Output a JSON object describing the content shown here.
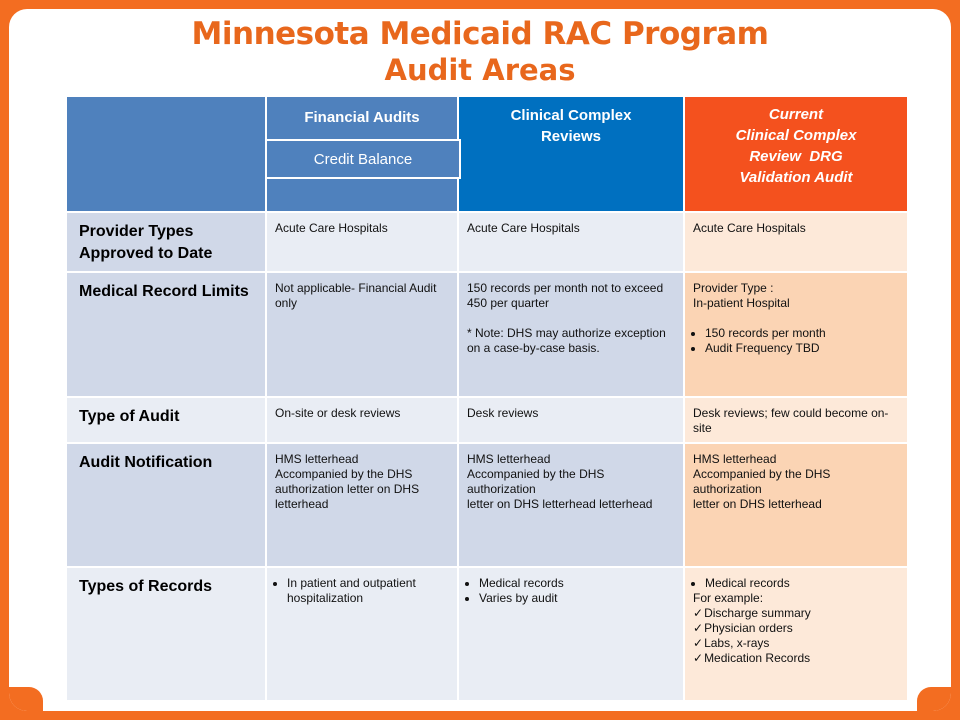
{
  "title": {
    "line1": "Minnesota Medicaid RAC Program",
    "line2": "Audit Areas"
  },
  "colors": {
    "frame": "#f36d21",
    "title": "#e8671c",
    "header_blue": "#4f81bd",
    "header_dark_blue": "#0070c0",
    "header_orange": "#f4511e"
  },
  "headers": {
    "financial": "Financial Audits",
    "credit_balance": "Credit Balance",
    "clinical": "Clinical Complex Reviews",
    "current_line1": "Current",
    "current_line2": "Clinical Complex",
    "current_line3": "Review  DRG",
    "current_line4": "Validation Audit"
  },
  "rows": {
    "provider": {
      "label": "Provider Types Approved to Date",
      "financial": "Acute Care Hospitals",
      "clinical": "Acute Care Hospitals",
      "current": "Acute Care Hospitals"
    },
    "limits": {
      "label": "Medical Record Limits",
      "financial": "Not applicable- Financial Audit only",
      "clinical_line1": "150 records per month not to exceed 450 per quarter",
      "clinical_line2": "* Note: DHS may authorize exception on a case-by-case basis.",
      "current_line1": "Provider Type :",
      "current_line2": "In-patient Hospital",
      "current_bullets": [
        "150 records per month",
        "Audit Frequency TBD"
      ]
    },
    "type": {
      "label": "Type of Audit",
      "financial": "On-site or desk reviews",
      "clinical": "Desk reviews",
      "current": "Desk reviews; few could become on-site"
    },
    "notification": {
      "label": "Audit Notification",
      "financial_line1": "HMS letterhead",
      "financial_line2": "Accompanied by the DHS authorization letter on DHS letterhead",
      "clinical_line1": "HMS letterhead",
      "clinical_line2": "Accompanied by the DHS authorization",
      "clinical_line3": "letter on DHS letterhead letterhead",
      "current_line1": "HMS letterhead",
      "current_line2": "Accompanied by the DHS authorization",
      "current_line3": "letter on DHS letterhead"
    },
    "records": {
      "label": "Types of Records",
      "financial_bullets": [
        "In patient and outpatient hospitalization"
      ],
      "clinical_bullets": [
        "Medical records",
        "Varies by audit"
      ],
      "current_bullet": "Medical records",
      "current_line": "For example:",
      "current_checks": [
        "Discharge summary",
        "Physician orders",
        "Labs, x-rays",
        "Medication Records"
      ]
    }
  }
}
